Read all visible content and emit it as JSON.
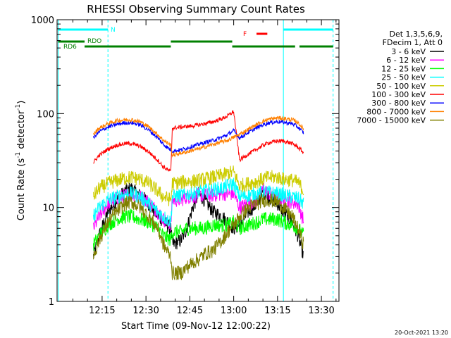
{
  "chart_data": {
    "type": "line",
    "title": "RHESSI Observing Summary Count Rates",
    "xlabel": "Start Time (09-Nov-12 12:00:22)",
    "ylabel_main": "Count Rate (s",
    "ylabel_sup1": "-1",
    "ylabel_mid": " detector",
    "ylabel_sup2": "-1",
    "ylabel_end": ")",
    "y_scale": "log",
    "ylim": [
      1,
      1000
    ],
    "xlim_minutes": [
      -0.4,
      96.0
    ],
    "x_ticks": [
      {
        "label": "12:15",
        "t": 15
      },
      {
        "label": "12:30",
        "t": 30
      },
      {
        "label": "12:45",
        "t": 45
      },
      {
        "label": "13:00",
        "t": 60
      },
      {
        "label": "13:15",
        "t": 75
      },
      {
        "label": "13:30",
        "t": 90
      }
    ],
    "y_ticks": [
      {
        "label": "1",
        "v": 1
      },
      {
        "label": "10",
        "v": 10
      },
      {
        "label": "100",
        "v": 100
      },
      {
        "label": "1000",
        "v": 1000
      }
    ],
    "legend_header": [
      "Det 1,3,5,6,9,",
      "FDecim 1, Att 0"
    ],
    "timestamp": "20-Oct-2021 13:20",
    "vertical_markers": [
      {
        "t": 0.0,
        "style": "solid",
        "color": "#00ffff"
      },
      {
        "t": 17.0,
        "style": "dashed",
        "color": "#00ffff"
      },
      {
        "t": 77.0,
        "style": "solid",
        "color": "#00ffff"
      },
      {
        "t": 94.0,
        "style": "dashed",
        "color": "#00ffff"
      }
    ],
    "flag_bars": [
      {
        "label": "N",
        "color": "#00ffff",
        "segments": [
          [
            0,
            17
          ],
          [
            77,
            94
          ]
        ]
      },
      {
        "label": "F",
        "color": "#ff0000",
        "segments": [
          [
            67.8,
            71.5
          ]
        ]
      },
      {
        "label": "RDO",
        "color": "#008000",
        "segments": [
          [
            0,
            9
          ],
          [
            38.5,
            59.5
          ]
        ]
      },
      {
        "label": "RD6",
        "color": "#008000",
        "segments": [
          [
            9,
            38.5
          ],
          [
            59.5,
            81
          ],
          [
            82.5,
            94
          ]
        ]
      }
    ],
    "series": [
      {
        "name": "3 - 6 keV",
        "color": "#000000",
        "points": [
          [
            12,
            3
          ],
          [
            14,
            5
          ],
          [
            17,
            9
          ],
          [
            20,
            12
          ],
          [
            23,
            15
          ],
          [
            25,
            16
          ],
          [
            27,
            14
          ],
          [
            30,
            12
          ],
          [
            33,
            9
          ],
          [
            36,
            7
          ],
          [
            38.5,
            6
          ],
          [
            39,
            4
          ],
          [
            42,
            4.5
          ],
          [
            44,
            6
          ],
          [
            46,
            10
          ],
          [
            48,
            14
          ],
          [
            50,
            12
          ],
          [
            53,
            9
          ],
          [
            56,
            8
          ],
          [
            58,
            7
          ],
          [
            60,
            6
          ],
          [
            62,
            6.5
          ],
          [
            65,
            9
          ],
          [
            68,
            11
          ],
          [
            70,
            15
          ],
          [
            72,
            13
          ],
          [
            75,
            11
          ],
          [
            77,
            9
          ],
          [
            80,
            7
          ],
          [
            82,
            5
          ],
          [
            84,
            3
          ]
        ]
      },
      {
        "name": "6 - 12 keV",
        "color": "#ff00ff",
        "points": [
          [
            12,
            6
          ],
          [
            14,
            8
          ],
          [
            17,
            11
          ],
          [
            20,
            12.5
          ],
          [
            23,
            13.5
          ],
          [
            25,
            14
          ],
          [
            28,
            13
          ],
          [
            31,
            11.5
          ],
          [
            34,
            9
          ],
          [
            36,
            7.5
          ],
          [
            38.5,
            6.5
          ],
          [
            39,
            12
          ],
          [
            42,
            12
          ],
          [
            44,
            13
          ],
          [
            46,
            13
          ],
          [
            48,
            13.5
          ],
          [
            50,
            13.5
          ],
          [
            53,
            13.5
          ],
          [
            56,
            14
          ],
          [
            58,
            14
          ],
          [
            60,
            14
          ],
          [
            62,
            10
          ],
          [
            65,
            11
          ],
          [
            68,
            12
          ],
          [
            70,
            16
          ],
          [
            72,
            14
          ],
          [
            75,
            13
          ],
          [
            77,
            12
          ],
          [
            80,
            11.5
          ],
          [
            82,
            11
          ],
          [
            84,
            7
          ]
        ]
      },
      {
        "name": "12 - 25 keV",
        "color": "#00ff00",
        "points": [
          [
            12,
            4
          ],
          [
            14,
            5
          ],
          [
            17,
            6.5
          ],
          [
            20,
            7.5
          ],
          [
            23,
            8
          ],
          [
            25,
            8
          ],
          [
            28,
            7.5
          ],
          [
            31,
            7
          ],
          [
            34,
            6
          ],
          [
            36,
            5
          ],
          [
            38.5,
            4.5
          ],
          [
            39,
            5.5
          ],
          [
            42,
            5.5
          ],
          [
            44,
            6
          ],
          [
            46,
            6
          ],
          [
            48,
            6
          ],
          [
            50,
            6
          ],
          [
            53,
            6.5
          ],
          [
            56,
            6.5
          ],
          [
            58,
            6.5
          ],
          [
            60,
            7
          ],
          [
            62,
            6
          ],
          [
            65,
            6.5
          ],
          [
            68,
            7
          ],
          [
            70,
            7.5
          ],
          [
            72,
            7.5
          ],
          [
            75,
            7.5
          ],
          [
            77,
            7
          ],
          [
            80,
            6.5
          ],
          [
            82,
            6
          ],
          [
            84,
            5
          ]
        ]
      },
      {
        "name": "25 - 50 keV",
        "color": "#00ffff",
        "points": [
          [
            12,
            8
          ],
          [
            14,
            10
          ],
          [
            17,
            12
          ],
          [
            20,
            13
          ],
          [
            23,
            14
          ],
          [
            25,
            14
          ],
          [
            28,
            13
          ],
          [
            31,
            11
          ],
          [
            34,
            9
          ],
          [
            36,
            8
          ],
          [
            38.5,
            7
          ],
          [
            39,
            13
          ],
          [
            42,
            13.5
          ],
          [
            44,
            14
          ],
          [
            46,
            14
          ],
          [
            48,
            14.5
          ],
          [
            50,
            15
          ],
          [
            53,
            15.5
          ],
          [
            56,
            16
          ],
          [
            58,
            17
          ],
          [
            60,
            18
          ],
          [
            62,
            13
          ],
          [
            65,
            13.5
          ],
          [
            68,
            14
          ],
          [
            70,
            14.5
          ],
          [
            72,
            14.5
          ],
          [
            75,
            14
          ],
          [
            77,
            13.5
          ],
          [
            80,
            13
          ],
          [
            82,
            12.5
          ],
          [
            84,
            11
          ]
        ]
      },
      {
        "name": "50 - 100 keV",
        "color": "#cccc00",
        "points": [
          [
            12,
            13
          ],
          [
            14,
            16
          ],
          [
            17,
            18
          ],
          [
            20,
            19.5
          ],
          [
            23,
            20.5
          ],
          [
            25,
            21
          ],
          [
            28,
            20
          ],
          [
            31,
            18
          ],
          [
            34,
            15
          ],
          [
            36,
            13
          ],
          [
            38.5,
            12
          ],
          [
            39,
            18
          ],
          [
            42,
            18.5
          ],
          [
            44,
            19
          ],
          [
            46,
            19
          ],
          [
            48,
            19.5
          ],
          [
            50,
            20
          ],
          [
            53,
            21
          ],
          [
            56,
            22
          ],
          [
            58,
            23
          ],
          [
            60,
            24
          ],
          [
            62,
            17
          ],
          [
            65,
            18
          ],
          [
            68,
            19
          ],
          [
            70,
            20
          ],
          [
            72,
            21
          ],
          [
            75,
            21
          ],
          [
            77,
            20
          ],
          [
            80,
            19.5
          ],
          [
            82,
            18.5
          ],
          [
            84,
            15
          ]
        ]
      },
      {
        "name": "100 - 300 keV",
        "color": "#ff0000",
        "points": [
          [
            12,
            30
          ],
          [
            14,
            36
          ],
          [
            17,
            42
          ],
          [
            20,
            46
          ],
          [
            23,
            48
          ],
          [
            25,
            48
          ],
          [
            28,
            45
          ],
          [
            31,
            39
          ],
          [
            34,
            32
          ],
          [
            36,
            27
          ],
          [
            38.5,
            24
          ],
          [
            39,
            70
          ],
          [
            42,
            72
          ],
          [
            44,
            73
          ],
          [
            46,
            74
          ],
          [
            48,
            76
          ],
          [
            50,
            78
          ],
          [
            53,
            82
          ],
          [
            56,
            88
          ],
          [
            58,
            95
          ],
          [
            60,
            105
          ],
          [
            62,
            32
          ],
          [
            65,
            37
          ],
          [
            68,
            42
          ],
          [
            70,
            46
          ],
          [
            72,
            49
          ],
          [
            75,
            51
          ],
          [
            77,
            51
          ],
          [
            80,
            48
          ],
          [
            82,
            44
          ],
          [
            84,
            38
          ]
        ]
      },
      {
        "name": "300 - 800 keV",
        "color": "#0000ff",
        "points": [
          [
            12,
            55
          ],
          [
            14,
            64
          ],
          [
            17,
            72
          ],
          [
            20,
            77
          ],
          [
            23,
            80
          ],
          [
            25,
            80
          ],
          [
            28,
            76
          ],
          [
            31,
            67
          ],
          [
            34,
            55
          ],
          [
            36,
            47
          ],
          [
            38.5,
            41
          ],
          [
            39,
            40
          ],
          [
            42,
            41
          ],
          [
            44,
            43
          ],
          [
            46,
            45
          ],
          [
            48,
            47
          ],
          [
            50,
            49
          ],
          [
            53,
            52
          ],
          [
            56,
            56
          ],
          [
            58,
            60
          ],
          [
            60,
            66
          ],
          [
            62,
            55
          ],
          [
            65,
            63
          ],
          [
            68,
            71
          ],
          [
            70,
            76
          ],
          [
            72,
            80
          ],
          [
            75,
            82
          ],
          [
            77,
            81
          ],
          [
            80,
            78
          ],
          [
            82,
            72
          ],
          [
            84,
            62
          ]
        ]
      },
      {
        "name": "800 - 7000 keV",
        "color": "#ff8000",
        "points": [
          [
            12,
            60
          ],
          [
            14,
            70
          ],
          [
            17,
            78
          ],
          [
            20,
            84
          ],
          [
            23,
            86
          ],
          [
            25,
            86
          ],
          [
            28,
            82
          ],
          [
            31,
            72
          ],
          [
            34,
            60
          ],
          [
            36,
            52
          ],
          [
            38.5,
            46
          ],
          [
            39,
            36
          ],
          [
            42,
            38
          ],
          [
            44,
            39
          ],
          [
            46,
            41
          ],
          [
            48,
            42
          ],
          [
            50,
            44
          ],
          [
            53,
            47
          ],
          [
            56,
            50
          ],
          [
            58,
            52
          ],
          [
            60,
            56
          ],
          [
            62,
            60
          ],
          [
            65,
            68
          ],
          [
            68,
            77
          ],
          [
            70,
            83
          ],
          [
            72,
            87
          ],
          [
            75,
            90
          ],
          [
            77,
            89
          ],
          [
            80,
            86
          ],
          [
            82,
            80
          ],
          [
            84,
            68
          ]
        ]
      },
      {
        "name": "7000 - 15000 keV",
        "color": "#808000",
        "points": [
          [
            12,
            3
          ],
          [
            14,
            4.5
          ],
          [
            17,
            7
          ],
          [
            20,
            9
          ],
          [
            23,
            11
          ],
          [
            25,
            11.5
          ],
          [
            28,
            10
          ],
          [
            31,
            8
          ],
          [
            34,
            6
          ],
          [
            36,
            4
          ],
          [
            38.5,
            3
          ],
          [
            39,
            2
          ],
          [
            42,
            2
          ],
          [
            44,
            2.3
          ],
          [
            46,
            2.6
          ],
          [
            48,
            2.8
          ],
          [
            50,
            3.2
          ],
          [
            53,
            3.5
          ],
          [
            56,
            4.5
          ],
          [
            58,
            5.5
          ],
          [
            60,
            6.5
          ],
          [
            62,
            8
          ],
          [
            65,
            10
          ],
          [
            68,
            11
          ],
          [
            70,
            12
          ],
          [
            72,
            12
          ],
          [
            75,
            11.5
          ],
          [
            77,
            10
          ],
          [
            80,
            8
          ],
          [
            82,
            6
          ],
          [
            84,
            4
          ]
        ]
      }
    ]
  }
}
